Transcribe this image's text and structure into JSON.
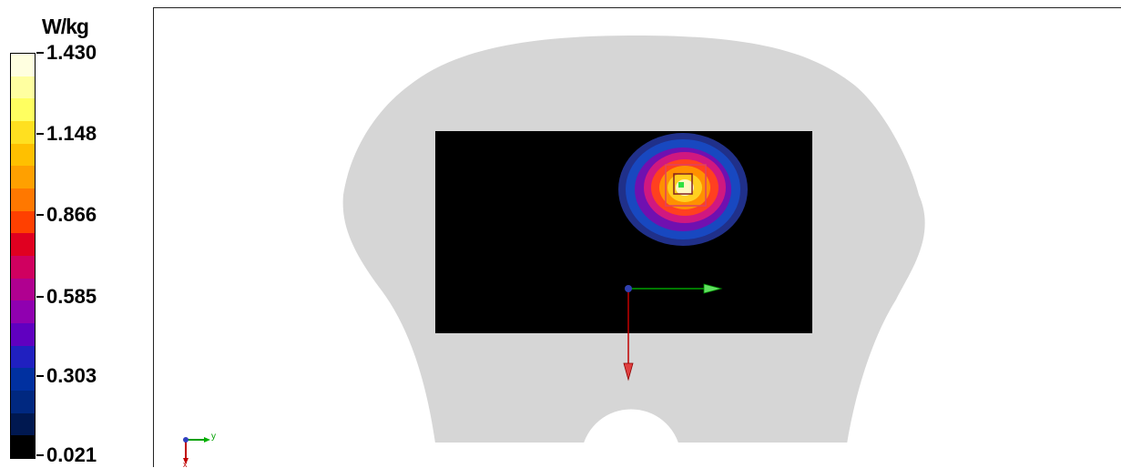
{
  "legend": {
    "unit": "W/kg",
    "ticks": [
      {
        "label": "1.430",
        "value": 1.43
      },
      {
        "label": "1.148",
        "value": 1.148
      },
      {
        "label": "0.866",
        "value": 0.866
      },
      {
        "label": "0.585",
        "value": 0.585
      },
      {
        "label": "0.303",
        "value": 0.303
      },
      {
        "label": "0.021",
        "value": 0.021
      }
    ],
    "colors_top_to_bottom": [
      "#ffffe0",
      "#ffffa0",
      "#ffff60",
      "#ffe020",
      "#ffc000",
      "#ffa000",
      "#ff7800",
      "#ff4000",
      "#e00020",
      "#d00060",
      "#b00090",
      "#9000b0",
      "#6000c0",
      "#2020c0",
      "#0030a0",
      "#002880",
      "#001850",
      "#000000"
    ]
  },
  "scene": {
    "phantom_color": "#d6d6d6",
    "scan_area_color": "#000000",
    "hotspot_colors": [
      "#20308a",
      "#1848c0",
      "#7010b0",
      "#d01880",
      "#ff4020",
      "#ff9000",
      "#ffd020",
      "#fff8c0"
    ],
    "axis_colors": {
      "x": "#c00000",
      "y": "#00a000",
      "origin": "#3040b0"
    }
  },
  "triad": {
    "y_label": "y",
    "x_label": "x"
  }
}
